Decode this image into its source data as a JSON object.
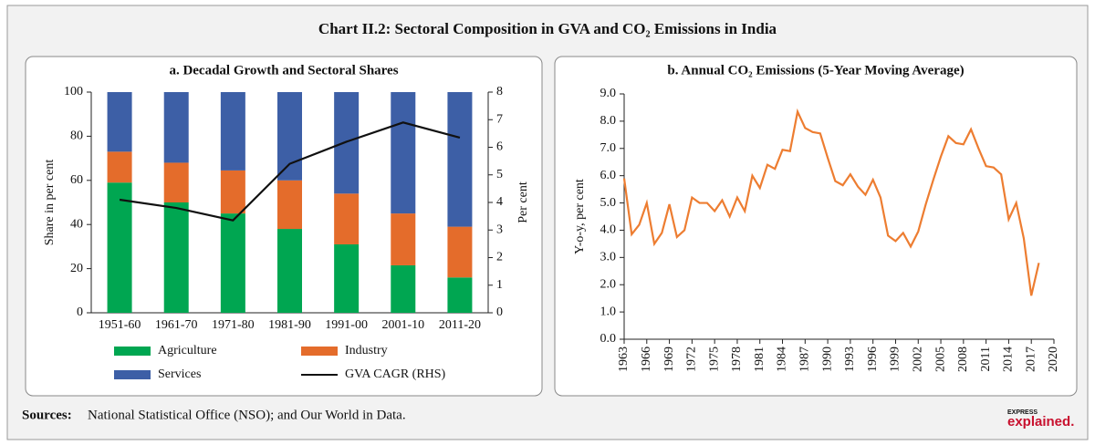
{
  "header": {
    "title": "Chart II.2: Sectoral Composition in GVA and CO₂ Emissions in India"
  },
  "footer": {
    "sources_label": "Sources:",
    "sources": "National Statistical Office (NSO); and Our World in Data."
  },
  "logo": {
    "top": "EXPRESS",
    "main": "explained."
  },
  "chart_data": [
    {
      "type": "bar",
      "stacked": true,
      "title": "a. Decadal Growth and Sectoral Shares",
      "y_label": "Share in per cent",
      "y2_label": "Per cent",
      "categories": [
        "1951-60",
        "1961-70",
        "1971-80",
        "1981-90",
        "1991-00",
        "2001-10",
        "2011-20"
      ],
      "series": [
        {
          "name": "Agriculture",
          "color": "#00a651",
          "values": [
            59,
            50,
            45,
            38,
            31,
            21.5,
            16
          ]
        },
        {
          "name": "Industry",
          "color": "#e46c2b",
          "values": [
            14,
            18,
            19.5,
            22,
            23,
            23.5,
            23
          ]
        },
        {
          "name": "Services",
          "color": "#3d5fa6",
          "values": [
            27,
            32,
            35.5,
            40,
            46,
            55,
            61
          ]
        },
        {
          "name": "GVA CAGR (RHS)",
          "color": "#111111",
          "type": "line",
          "axis": "y2",
          "values": [
            4.1,
            3.8,
            3.35,
            5.4,
            6.2,
            6.9,
            6.35
          ]
        }
      ],
      "ylim": [
        0,
        100
      ],
      "yticks": [
        0,
        20,
        40,
        60,
        80,
        100
      ],
      "y2lim": [
        0,
        8
      ],
      "y2ticks": [
        0,
        1,
        2,
        3,
        4,
        5,
        6,
        7,
        8
      ],
      "grid": false,
      "legend": "bottom"
    },
    {
      "type": "line",
      "title": "b. Annual CO₂ Emissions (5-Year Moving Average)",
      "y_label": "Y-o-y, per cent",
      "x": [
        1963,
        1964,
        1965,
        1966,
        1967,
        1968,
        1969,
        1970,
        1971,
        1972,
        1973,
        1974,
        1975,
        1976,
        1977,
        1978,
        1979,
        1980,
        1981,
        1982,
        1983,
        1984,
        1985,
        1986,
        1987,
        1988,
        1989,
        1990,
        1991,
        1992,
        1993,
        1994,
        1995,
        1996,
        1997,
        1998,
        1999,
        2000,
        2001,
        2002,
        2003,
        2004,
        2005,
        2006,
        2007,
        2008,
        2009,
        2010,
        2011,
        2012,
        2013,
        2014,
        2015,
        2016,
        2017,
        2018
      ],
      "series": [
        {
          "name": "Annual CO₂ Emissions",
          "color": "#ed7d31",
          "values": [
            5.9,
            3.85,
            4.2,
            5.0,
            3.5,
            3.9,
            4.95,
            3.75,
            4.0,
            5.2,
            5.0,
            5.0,
            4.7,
            5.1,
            4.5,
            5.2,
            4.7,
            6.0,
            5.55,
            6.4,
            6.25,
            6.95,
            6.9,
            8.35,
            7.75,
            7.6,
            7.55,
            6.65,
            5.8,
            5.65,
            6.05,
            5.6,
            5.3,
            5.85,
            5.2,
            3.8,
            3.6,
            3.9,
            3.4,
            3.95,
            4.95,
            5.85,
            6.7,
            7.45,
            7.2,
            7.15,
            7.7,
            7.0,
            6.35,
            6.3,
            6.05,
            4.4,
            5.0,
            3.7,
            1.6,
            2.8
          ]
        }
      ],
      "xlim": [
        1963,
        2020
      ],
      "xticks": [
        1963,
        1966,
        1969,
        1972,
        1975,
        1978,
        1981,
        1984,
        1987,
        1990,
        1993,
        1996,
        1999,
        2002,
        2005,
        2008,
        2011,
        2014,
        2017,
        2020
      ],
      "ylim": [
        0,
        9
      ],
      "yticks": [
        {
          "value": 0,
          "label": "0.0"
        },
        {
          "value": 1,
          "label": "1.0"
        },
        {
          "value": 2,
          "label": "2.0"
        },
        {
          "value": 3,
          "label": "3.0"
        },
        {
          "value": 4,
          "label": "4.0"
        },
        {
          "value": 5,
          "label": "5.0"
        },
        {
          "value": 6,
          "label": "6.0"
        },
        {
          "value": 7,
          "label": "7.0"
        },
        {
          "value": 8,
          "label": "8.0"
        },
        {
          "value": 9,
          "label": "9.0"
        }
      ],
      "grid": false
    }
  ]
}
